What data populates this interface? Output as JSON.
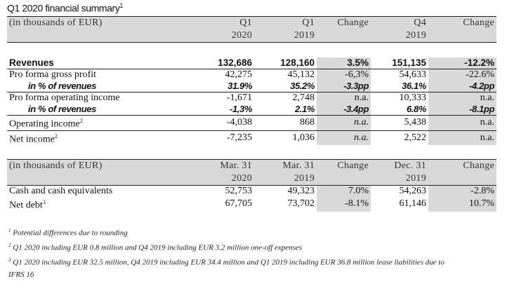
{
  "title": "Q1 2020 financial summary",
  "title_sup": "1",
  "table1": {
    "header": {
      "label": "(in thousands of EUR)",
      "c1a": "Q1",
      "c1b": "2020",
      "c2a": "Q1",
      "c2b": "2019",
      "c3": "Change",
      "c4a": "Q4",
      "c4b": "2019",
      "c5": "Change"
    },
    "rows": [
      {
        "label": "Revenues",
        "sup": "",
        "v": [
          "132,686",
          "128,160",
          "3.5%",
          "151,135",
          "-12.2%"
        ]
      },
      {
        "label": "Pro forma gross profit",
        "sup": "",
        "v": [
          "42,275",
          "45,132",
          "-6,3%",
          "54,633",
          "-22.6%"
        ]
      },
      {
        "label": "in % of revenues",
        "sup": "",
        "v": [
          "31.9%",
          "35.2%",
          "-3.3pp",
          "36.1%",
          "-4.2pp"
        ]
      },
      {
        "label": "Pro forma operating income",
        "sup": "",
        "v": [
          "-1,671",
          "2,748",
          "n.a.",
          "10,333",
          "n.a."
        ]
      },
      {
        "label": "in % of revenues",
        "sup": "",
        "v": [
          "-1,3%",
          "2.1%",
          "-3.4pp",
          "6.8%",
          "-8.1pp"
        ]
      },
      {
        "label": "Operating income",
        "sup": "2",
        "v": [
          "-4,038",
          "868",
          "n.a.",
          "5,438",
          "n.a."
        ]
      },
      {
        "label": "Net income",
        "sup": "2",
        "v": [
          "-7,235",
          "1,036",
          "n.a.",
          "2,522",
          "n.a."
        ]
      }
    ]
  },
  "table2": {
    "header": {
      "label": "(in thousands of EUR)",
      "c1a": "Mar. 31",
      "c1b": "2020",
      "c2a": "Mar. 31",
      "c2b": "2019",
      "c3": "Change",
      "c4a": "Dec. 31",
      "c4b": "2019",
      "c5": "Change"
    },
    "rows": [
      {
        "label": "Cash and cash equivalents",
        "sup": "",
        "v": [
          "52,753",
          "49,323",
          "7.0%",
          "54,263",
          "-2.8%"
        ]
      },
      {
        "label": "Net debt",
        "sup": "3",
        "v": [
          "67,705",
          "73,702",
          "-8.1%",
          "61,146",
          "10.7%"
        ]
      }
    ]
  },
  "footnotes": [
    {
      "sup": "1",
      "text": "Potential differences due to rounding"
    },
    {
      "sup": "2",
      "text": "Q1 2020 including EUR 0.8 million and Q4 2019 including EUR 3.2 million one-off expenses"
    },
    {
      "sup": "3",
      "text": "Q1 2020 including EUR 32.5 million, Q4 2019 including EUR 34.4 million and Q1 2019 including EUR 36.8 million lease liabilities due to"
    },
    {
      "sup": "",
      "text": "IFRS 16"
    }
  ]
}
